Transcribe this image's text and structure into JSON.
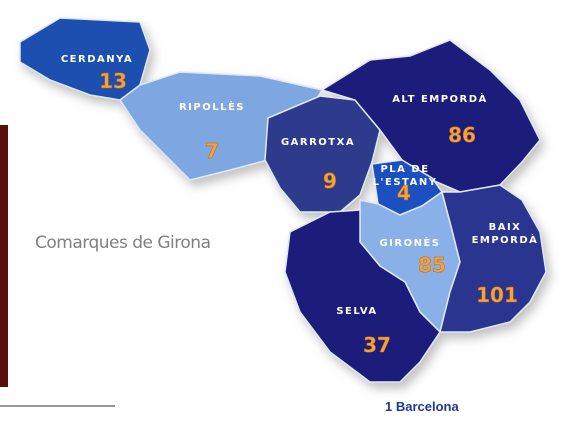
{
  "title": "Comarques de Girona",
  "footer": "1 Barcelona",
  "regions": [
    {
      "name": [
        "CERDANYA"
      ],
      "value": "13"
    },
    {
      "name": [
        "RIPOLLÈS"
      ],
      "value": "7"
    },
    {
      "name": [
        "GARROTXA"
      ],
      "value": "9"
    },
    {
      "name": [
        "ALT EMPORDÀ"
      ],
      "value": "86"
    },
    {
      "name": [
        "PLA DE",
        "L'ESTANY"
      ],
      "value": "4"
    },
    {
      "name": [
        "GIRONÈS"
      ],
      "value": "85"
    },
    {
      "name": [
        "BAIX",
        "EMPORDÀ"
      ],
      "value": "101"
    },
    {
      "name": [
        "SELVA"
      ],
      "value": "37"
    }
  ]
}
